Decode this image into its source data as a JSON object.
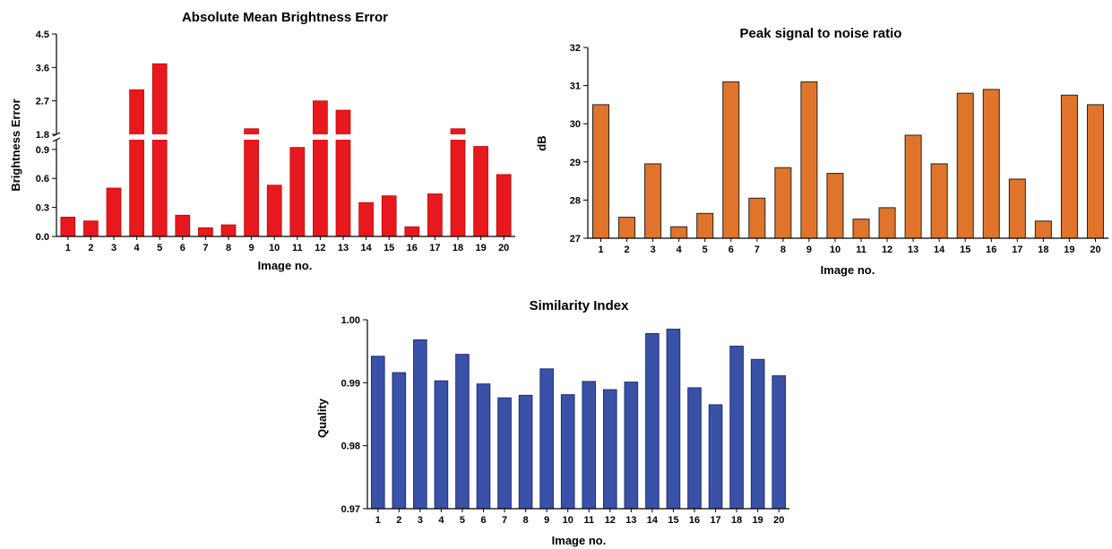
{
  "chart_data": [
    {
      "type": "bar",
      "title": "Absolute Mean Brightness Error",
      "xlabel": "Image no.",
      "ylabel": "Brightness Error",
      "broken_axis": true,
      "ylim_lower": [
        0,
        1.0
      ],
      "ylim_upper": [
        1.8,
        4.5
      ],
      "yticks_lower": [
        "0.0",
        "0.3",
        "0.6",
        "0.9"
      ],
      "yticks_upper": [
        "1.8",
        "2.7",
        "3.6",
        "4.5"
      ],
      "categories": [
        "1",
        "2",
        "3",
        "4",
        "5",
        "6",
        "7",
        "8",
        "9",
        "10",
        "11",
        "12",
        "13",
        "14",
        "15",
        "16",
        "17",
        "18",
        "19",
        "20"
      ],
      "values": [
        0.2,
        0.16,
        0.5,
        3.0,
        3.7,
        0.22,
        0.09,
        0.12,
        1.95,
        0.53,
        0.92,
        2.7,
        2.45,
        0.35,
        0.42,
        0.1,
        0.44,
        1.95,
        0.93,
        0.64
      ],
      "color": "#e8191e",
      "edge_color": "#c00000"
    },
    {
      "type": "bar",
      "title": "Peak signal to noise ratio",
      "xlabel": "Image no.",
      "ylabel": "dB",
      "ylim": [
        27,
        32
      ],
      "yticks": [
        "27",
        "28",
        "29",
        "30",
        "31",
        "32"
      ],
      "categories": [
        "1",
        "2",
        "3",
        "4",
        "5",
        "6",
        "7",
        "8",
        "9",
        "10",
        "11",
        "12",
        "13",
        "14",
        "15",
        "16",
        "17",
        "18",
        "19",
        "20"
      ],
      "values": [
        30.5,
        27.55,
        28.95,
        27.3,
        27.65,
        31.1,
        28.05,
        28.85,
        31.1,
        28.7,
        27.5,
        27.8,
        29.7,
        28.95,
        30.8,
        30.9,
        28.55,
        27.45,
        30.75,
        30.5
      ],
      "color": "#e0742b",
      "edge_color": "#222222"
    },
    {
      "type": "bar",
      "title": "Similarity Index",
      "xlabel": "Image no.",
      "ylabel": "Quality",
      "ylim": [
        0.97,
        1.0
      ],
      "yticks": [
        "0.97",
        "0.98",
        "0.99",
        "1.00"
      ],
      "categories": [
        "1",
        "2",
        "3",
        "4",
        "5",
        "6",
        "7",
        "8",
        "9",
        "10",
        "11",
        "12",
        "13",
        "14",
        "15",
        "16",
        "17",
        "18",
        "19",
        "20"
      ],
      "values": [
        0.9942,
        0.9916,
        0.9968,
        0.9903,
        0.9945,
        0.9898,
        0.9876,
        0.988,
        0.9922,
        0.9881,
        0.9902,
        0.9889,
        0.9901,
        0.9978,
        0.9985,
        0.9892,
        0.9865,
        0.9958,
        0.9937,
        0.9911
      ],
      "color": "#3a51a8",
      "edge_color": "#1f2d70"
    }
  ]
}
